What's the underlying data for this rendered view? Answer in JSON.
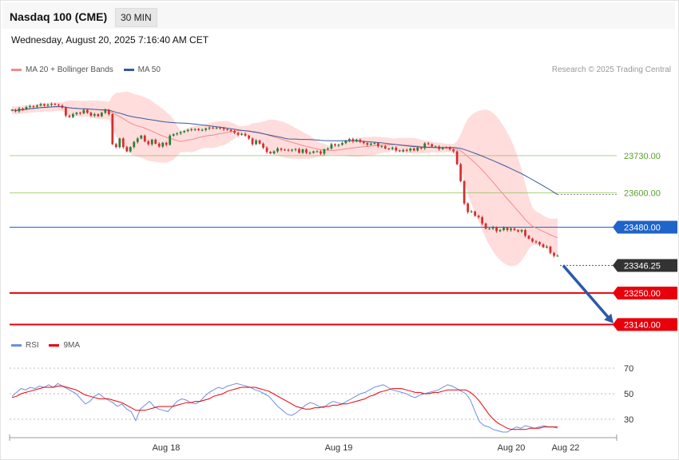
{
  "header": {
    "title": "Nasdaq 100 (CME)",
    "timeframe": "30 MIN"
  },
  "timestamp": "Wednesday, August 20, 2025 7:16:40 AM CET",
  "legend": {
    "ma20_label": "MA 20 + Bollinger Bands",
    "ma50_label": "MA 50",
    "copyright": "Research © 2025 Trading Central"
  },
  "rsi_legend": {
    "rsi_label": "RSI",
    "ma_label": "9MA"
  },
  "colors": {
    "ma20": "#f28a8a",
    "ma50": "#3a5a9b",
    "band_fill": "#ffd7d7",
    "up": "#2e7d32",
    "down": "#d32f2f",
    "support": "#e8000b",
    "pivot": "#1f64c8",
    "resistance": "#8bc34a",
    "price_tag": "#333333",
    "rsi": "#6e8fdc",
    "rsi_ma": "#e8000b"
  },
  "chart_data": [
    {
      "type": "candlestick",
      "title": "",
      "x_ticks": [
        "Aug 18",
        "Aug 19",
        "Aug 20",
        "Aug 22"
      ],
      "y_ticks": [
        23730.0,
        23600.0,
        23480.0,
        23346.25,
        23250.0,
        23140.0
      ],
      "y_range": [
        23120,
        23960
      ],
      "candles_close": [
        23890,
        23885,
        23895,
        23892,
        23900,
        23903,
        23901,
        23905,
        23910,
        23905,
        23908,
        23911,
        23908,
        23905,
        23898,
        23870,
        23865,
        23875,
        23880,
        23878,
        23890,
        23880,
        23870,
        23875,
        23868,
        23880,
        23890,
        23875,
        23770,
        23760,
        23790,
        23760,
        23745,
        23760,
        23778,
        23790,
        23800,
        23780,
        23770,
        23786,
        23772,
        23762,
        23775,
        23768,
        23800,
        23805,
        23808,
        23812,
        23816,
        23820,
        23822,
        23823,
        23819,
        23820,
        23825,
        23828,
        23826,
        23828,
        23826,
        23822,
        23820,
        23816,
        23810,
        23803,
        23806,
        23800,
        23790,
        23770,
        23783,
        23772,
        23758,
        23743,
        23738,
        23745,
        23755,
        23751,
        23750,
        23748,
        23751,
        23753,
        23740,
        23752,
        23740,
        23740,
        23745,
        23745,
        23737,
        23752,
        23755,
        23770,
        23766,
        23768,
        23774,
        23782,
        23788,
        23780,
        23786,
        23778,
        23774,
        23768,
        23772,
        23774,
        23763,
        23763,
        23755,
        23754,
        23758,
        23748,
        23745,
        23750,
        23748,
        23755,
        23748,
        23758,
        23756,
        23773,
        23770,
        23762,
        23762,
        23753,
        23759,
        23758,
        23752,
        23745,
        23700,
        23641,
        23563,
        23533,
        23535,
        23520,
        23515,
        23493,
        23475,
        23475,
        23480,
        23466,
        23470,
        23478,
        23470,
        23475,
        23470,
        23465,
        23470,
        23450,
        23440,
        23430,
        23428,
        23420,
        23410,
        23412,
        23390,
        23380,
        23380
      ],
      "current_price": 23346.25,
      "forecast_arrow": {
        "from": 23346.25,
        "to": 23140.0
      },
      "indicators": [
        "MA 20 + Bollinger Bands",
        "MA 50"
      ]
    },
    {
      "type": "line",
      "title": "RSI",
      "y_ticks": [
        70,
        50,
        30
      ],
      "y_range": [
        10,
        80
      ],
      "series": [
        {
          "name": "RSI",
          "values": [
            48,
            51,
            54,
            53,
            55,
            54,
            56,
            55,
            57,
            55,
            58,
            56,
            54,
            52,
            50,
            46,
            42,
            44,
            48,
            50,
            47,
            45,
            43,
            40,
            42,
            38,
            36,
            29,
            38,
            41,
            44,
            40,
            38,
            37,
            36,
            40,
            44,
            46,
            45,
            43,
            42,
            44,
            48,
            51,
            53,
            55,
            54,
            56,
            57,
            58,
            57,
            56,
            55,
            53,
            52,
            50,
            48,
            44,
            40,
            37,
            34,
            33,
            35,
            38,
            41,
            43,
            42,
            40,
            39,
            42,
            44,
            43,
            42,
            44,
            46,
            48,
            50,
            51,
            53,
            55,
            56,
            57,
            55,
            53,
            52,
            51,
            50,
            48,
            47,
            49,
            50,
            51,
            52,
            53,
            55,
            57,
            56,
            54,
            52,
            50,
            45,
            36,
            28,
            25,
            24,
            22,
            21,
            20,
            20,
            22,
            24,
            23,
            25,
            24,
            23,
            24,
            25,
            24,
            24,
            23
          ]
        },
        {
          "name": "9MA",
          "values": [
            47,
            48,
            50,
            51,
            52,
            53,
            54,
            55,
            55,
            55,
            56,
            56,
            55,
            54,
            53,
            51,
            49,
            48,
            47,
            46,
            46,
            46,
            45,
            44,
            43,
            41,
            39,
            37,
            37,
            37,
            38,
            39,
            40,
            40,
            40,
            40,
            41,
            42,
            43,
            43,
            44,
            44,
            45,
            46,
            48,
            49,
            50,
            52,
            53,
            54,
            55,
            55,
            55,
            55,
            54,
            53,
            52,
            50,
            48,
            46,
            44,
            42,
            40,
            39,
            38,
            38,
            39,
            39,
            40,
            40,
            41,
            41,
            42,
            42,
            43,
            44,
            45,
            46,
            48,
            49,
            51,
            52,
            53,
            54,
            54,
            54,
            53,
            52,
            51,
            51,
            50,
            50,
            51,
            51,
            52,
            53,
            53,
            53,
            53,
            53,
            51,
            48,
            44,
            39,
            34,
            30,
            27,
            25,
            23,
            22,
            22,
            22,
            22,
            23,
            23,
            23,
            24,
            24,
            24,
            24
          ]
        }
      ]
    }
  ]
}
